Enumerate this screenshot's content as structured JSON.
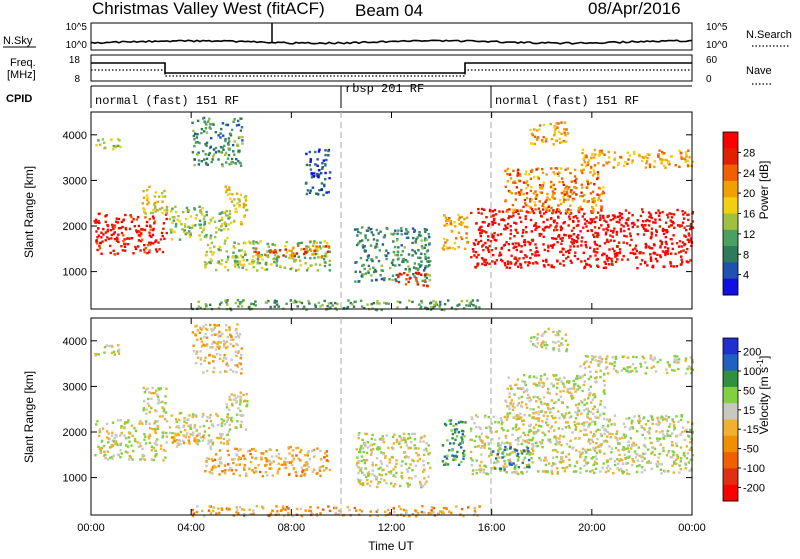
{
  "header": {
    "station": "Christmas Valley West (fitACF)",
    "beam": "Beam 04",
    "date": "08/Apr/2016"
  },
  "strip_labels": {
    "nsky": "N.Sky",
    "nsearch": "N.Search",
    "freq": "Freq.",
    "freq_unit": "[MHz]",
    "nave": "Nave",
    "cpid": "CPID",
    "nsky_ticks": [
      "10^5",
      "10^0"
    ],
    "nsearch_ticks": [
      "10^5",
      "10^0"
    ],
    "freq_ticks": [
      "18",
      "8"
    ],
    "nave_ticks": [
      "60",
      "0"
    ]
  },
  "cpid_modes": [
    {
      "label": "normal (fast) 151 RF",
      "start_h": 0,
      "end_h": 10
    },
    {
      "label": "rbsp 201 RF",
      "start_h": 10,
      "end_h": 16
    },
    {
      "label": "normal (fast) 151 RF",
      "start_h": 16,
      "end_h": 24
    }
  ],
  "colors": {
    "power_scale": [
      "#1010e0",
      "#2050b0",
      "#2f7a5a",
      "#4aa060",
      "#a0c040",
      "#f0d010",
      "#f0a000",
      "#f06000",
      "#e02000",
      "#ff0000"
    ],
    "velocity_scale": [
      "#2030d0",
      "#2060c0",
      "#309040",
      "#80d040",
      "#c8c8c0",
      "#f0b030",
      "#f09000",
      "#f06000",
      "#e03010",
      "#ff0000"
    ]
  },
  "chart_data": [
    {
      "type": "heatmap",
      "name": "power-panel",
      "xlabel": "Time UT",
      "ylabel": "Slant Range [km]",
      "colorbar_label": "Power [dB]",
      "colorbar_ticks": [
        "4",
        "8",
        "12",
        "16",
        "20",
        "24",
        "28"
      ],
      "xlim": [
        0,
        24
      ],
      "ylim": [
        180,
        4500
      ],
      "yticks": [
        "1000",
        "2000",
        "3000",
        "4000"
      ],
      "xticks": [
        "00:00",
        "04:00",
        "08:00",
        "12:00",
        "16:00",
        "20:00",
        "00:00"
      ],
      "regions": [
        {
          "t0": 0.1,
          "t1": 3.0,
          "r0": 1400,
          "r1": 2300,
          "level": 0.9
        },
        {
          "t0": 2.0,
          "t1": 3.0,
          "r0": 2300,
          "r1": 3000,
          "level": 0.55
        },
        {
          "t0": 0.1,
          "t1": 1.2,
          "r0": 3700,
          "r1": 3950,
          "level": 0.45
        },
        {
          "t0": 3.1,
          "t1": 5.5,
          "r0": 1700,
          "r1": 2450,
          "level": 0.45
        },
        {
          "t0": 5.3,
          "t1": 6.2,
          "r0": 2050,
          "r1": 2900,
          "level": 0.55
        },
        {
          "t0": 4.5,
          "t1": 9.5,
          "r0": 1050,
          "r1": 1700,
          "level": 0.45
        },
        {
          "t0": 6.5,
          "t1": 9.5,
          "r0": 1350,
          "r1": 1600,
          "level": 0.75
        },
        {
          "t0": 4.0,
          "t1": 6.0,
          "r0": 3300,
          "r1": 4400,
          "level": 0.3
        },
        {
          "t0": 8.5,
          "t1": 9.5,
          "r0": 2700,
          "r1": 3700,
          "level": 0.15
        },
        {
          "t0": 10.5,
          "t1": 13.5,
          "r0": 800,
          "r1": 2000,
          "level": 0.3
        },
        {
          "t0": 12.2,
          "t1": 13.5,
          "r0": 700,
          "r1": 1000,
          "level": 0.85
        },
        {
          "t0": 14.0,
          "t1": 15.0,
          "r0": 1500,
          "r1": 2300,
          "level": 0.65
        },
        {
          "t0": 15.1,
          "t1": 24.0,
          "r0": 1100,
          "r1": 2400,
          "level": 0.95
        },
        {
          "t0": 16.5,
          "t1": 20.5,
          "r0": 2300,
          "r1": 3300,
          "level": 0.7
        },
        {
          "t0": 19.5,
          "t1": 24.0,
          "r0": 3300,
          "r1": 3700,
          "level": 0.65
        },
        {
          "t0": 17.5,
          "t1": 19.0,
          "r0": 3800,
          "r1": 4300,
          "level": 0.65
        },
        {
          "t0": 4.0,
          "t1": 15.5,
          "r0": 180,
          "r1": 400,
          "level": 0.35
        }
      ]
    },
    {
      "type": "heatmap",
      "name": "velocity-panel",
      "xlabel": "Time UT",
      "ylabel": "Slant Range [km]",
      "colorbar_label": "Velocity [m s^-1]",
      "colorbar_ticks": [
        "200",
        "100",
        "50",
        "15",
        "-15",
        "-50",
        "-100",
        "-200"
      ],
      "xlim": [
        0,
        24
      ],
      "ylim": [
        180,
        4500
      ],
      "yticks": [
        "1000",
        "2000",
        "3000",
        "4000"
      ],
      "xticks": [
        "00:00",
        "04:00",
        "08:00",
        "12:00",
        "16:00",
        "20:00",
        "00:00"
      ],
      "regions": [
        {
          "t0": 0.1,
          "t1": 3.0,
          "r0": 1400,
          "r1": 2300,
          "level": 0.45
        },
        {
          "t0": 2.0,
          "t1": 3.0,
          "r0": 2300,
          "r1": 3000,
          "level": 0.45
        },
        {
          "t0": 0.1,
          "t1": 1.2,
          "r0": 3700,
          "r1": 3950,
          "level": 0.45
        },
        {
          "t0": 3.1,
          "t1": 5.5,
          "r0": 1700,
          "r1": 2450,
          "level": 0.45
        },
        {
          "t0": 3.1,
          "t1": 4.5,
          "r0": 1700,
          "r1": 2000,
          "level": 0.55
        },
        {
          "t0": 5.3,
          "t1": 6.2,
          "r0": 2050,
          "r1": 2900,
          "level": 0.45
        },
        {
          "t0": 4.5,
          "t1": 9.5,
          "r0": 1050,
          "r1": 1700,
          "level": 0.6
        },
        {
          "t0": 4.0,
          "t1": 6.0,
          "r0": 3300,
          "r1": 4400,
          "level": 0.55
        },
        {
          "t0": 10.5,
          "t1": 13.5,
          "r0": 800,
          "r1": 2000,
          "level": 0.45
        },
        {
          "t0": 14.0,
          "t1": 15.0,
          "r0": 1300,
          "r1": 2300,
          "level": 0.25
        },
        {
          "t0": 15.1,
          "t1": 24.0,
          "r0": 1100,
          "r1": 2400,
          "level": 0.45
        },
        {
          "t0": 16.0,
          "t1": 17.5,
          "r0": 1200,
          "r1": 1700,
          "level": 0.25
        },
        {
          "t0": 16.5,
          "t1": 20.5,
          "r0": 2300,
          "r1": 3300,
          "level": 0.45
        },
        {
          "t0": 19.5,
          "t1": 24.0,
          "r0": 3300,
          "r1": 3700,
          "level": 0.45
        },
        {
          "t0": 17.5,
          "t1": 19.0,
          "r0": 3800,
          "r1": 4300,
          "level": 0.45
        },
        {
          "t0": 4.0,
          "t1": 15.5,
          "r0": 180,
          "r1": 400,
          "level": 0.6
        }
      ]
    }
  ]
}
